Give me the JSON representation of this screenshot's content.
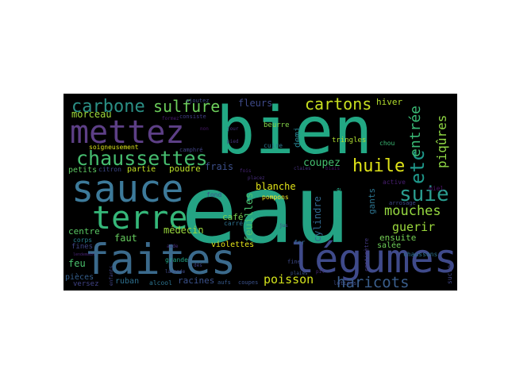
{
  "image": {
    "kind": "word-cloud",
    "background": "#ffffff",
    "cloud_background": "#000000",
    "palette": [
      "#2a9d8f",
      "#1fa187",
      "#3b5d8a",
      "#5c4a8e",
      "#4cc37b",
      "#8fd744",
      "#cfe11c",
      "#3f87a5",
      "#27ad81"
    ]
  },
  "words": [
    {
      "text": "eau",
      "color": "#24a384"
    },
    {
      "text": "bien",
      "color": "#22a884"
    },
    {
      "text": "faites",
      "color": "#3b6a8c"
    },
    {
      "text": "légumes",
      "color": "#3f4a8a"
    },
    {
      "text": "sauce",
      "color": "#3d7a9a"
    },
    {
      "text": "mettez",
      "color": "#5d3f86"
    },
    {
      "text": "terre",
      "color": "#35b779"
    },
    {
      "text": "chaussettes",
      "color": "#46bd6f"
    },
    {
      "text": "carbone",
      "color": "#2b8f85"
    },
    {
      "text": "sulfure",
      "color": "#6ccd5a"
    },
    {
      "text": "cartons",
      "color": "#c8e020"
    },
    {
      "text": "huile",
      "color": "#dfe318"
    },
    {
      "text": "suie",
      "color": "#2a9d8f"
    },
    {
      "text": "etc",
      "color": "#1f988b"
    },
    {
      "text": "mouches",
      "color": "#95d840"
    },
    {
      "text": "haricots",
      "color": "#3a5e8c"
    },
    {
      "text": "poisson",
      "color": "#d2e21b"
    },
    {
      "text": "guerir",
      "color": "#9bd93c"
    },
    {
      "text": "entrée",
      "color": "#3aba76"
    },
    {
      "text": "piqûres",
      "color": "#8fd744"
    },
    {
      "text": "fleurs",
      "color": "#3e4a89"
    },
    {
      "text": "morceau",
      "color": "#9fda3a"
    },
    {
      "text": "hiver",
      "color": "#b2dd2d"
    },
    {
      "text": "blanche",
      "color": "#e1e318"
    },
    {
      "text": "frais",
      "color": "#3c4f8a"
    },
    {
      "text": "coupez",
      "color": "#45bf70"
    },
    {
      "text": "demi",
      "color": "#27808e"
    },
    {
      "text": "gants",
      "color": "#2c738e"
    },
    {
      "text": "feuilles",
      "color": "#4ac16d"
    },
    {
      "text": "cylindre",
      "color": "#31688e"
    },
    {
      "text": "ensuite",
      "color": "#75d054"
    },
    {
      "text": "médecin",
      "color": "#9ad93d"
    },
    {
      "text": "faut",
      "color": "#65cb5e"
    },
    {
      "text": "centre",
      "color": "#5ac864"
    },
    {
      "text": "feu",
      "color": "#4ac16d"
    },
    {
      "text": "café",
      "color": "#7ad151"
    },
    {
      "text": "partie",
      "color": "#c2df23"
    },
    {
      "text": "poudre",
      "color": "#bade28"
    },
    {
      "text": "petits",
      "color": "#5ec962"
    },
    {
      "text": "soigneusement",
      "color": "#d8e219"
    },
    {
      "text": "racines",
      "color": "#3b528b"
    },
    {
      "text": "ruban",
      "color": "#2e6f8e"
    },
    {
      "text": "pièces",
      "color": "#355f8d"
    },
    {
      "text": "versez",
      "color": "#414487"
    },
    {
      "text": "violettes",
      "color": "#e5e419"
    },
    {
      "text": "pompons",
      "color": "#fde725"
    },
    {
      "text": "tringles",
      "color": "#addc30"
    },
    {
      "text": "beurre",
      "color": "#86d549"
    },
    {
      "text": "cuire",
      "color": "#2a788e"
    },
    {
      "text": "chou",
      "color": "#3bbb75"
    },
    {
      "text": "salée",
      "color": "#6ece58"
    },
    {
      "text": "fines",
      "color": "#3f4788"
    },
    {
      "text": "carré",
      "color": "#2d718e"
    },
    {
      "text": "fond",
      "color": "#3b528b"
    },
    {
      "text": "fer",
      "color": "#31688e"
    },
    {
      "text": "corps",
      "color": "#277f8e"
    },
    {
      "text": "citron",
      "color": "#3e4989"
    },
    {
      "text": "alcool",
      "color": "#2c728e"
    },
    {
      "text": "grande",
      "color": "#20a486"
    },
    {
      "text": "flanelle",
      "color": "#22a785"
    },
    {
      "text": "active",
      "color": "#481f70"
    },
    {
      "text": "miel",
      "color": "#471063"
    },
    {
      "text": "chaussons",
      "color": "#2d718e"
    },
    {
      "text": "arrosage",
      "color": "#3f4889"
    },
    {
      "text": "sucre",
      "color": "#404688"
    },
    {
      "text": "centimètre",
      "color": "#443983"
    },
    {
      "text": "lotions",
      "color": "#3e4c8a"
    },
    {
      "text": "coupes",
      "color": "#3b528b"
    },
    {
      "text": "aufs",
      "color": "#375a8c"
    },
    {
      "text": "fine",
      "color": "#3e4a89"
    },
    {
      "text": "ajoutez",
      "color": "#3f4889"
    },
    {
      "text": "consiste",
      "color": "#423f85"
    },
    {
      "text": "camphré",
      "color": "#414487"
    },
    {
      "text": "plaies",
      "color": "#3b528b"
    },
    {
      "text": "jour",
      "color": "#453781"
    },
    {
      "text": "pied",
      "color": "#46337e"
    },
    {
      "text": "claies",
      "color": "#46327e"
    },
    {
      "text": "biais",
      "color": "#471365"
    },
    {
      "text": "lavande",
      "color": "#3e4a89"
    },
    {
      "text": "enfants",
      "color": "#414487"
    },
    {
      "text": "dès",
      "color": "#404588"
    },
    {
      "text": "pil",
      "color": "#472a7a"
    },
    {
      "text": "aide",
      "color": "#46307e"
    },
    {
      "text": "lendemain",
      "color": "#482475"
    },
    {
      "text": "formez",
      "color": "#481a6c"
    },
    {
      "text": "non",
      "color": "#481769"
    },
    {
      "text": "jus",
      "color": "#443a83"
    },
    {
      "text": "placez",
      "color": "#472d7b"
    },
    {
      "text": "fois",
      "color": "#482576"
    }
  ]
}
